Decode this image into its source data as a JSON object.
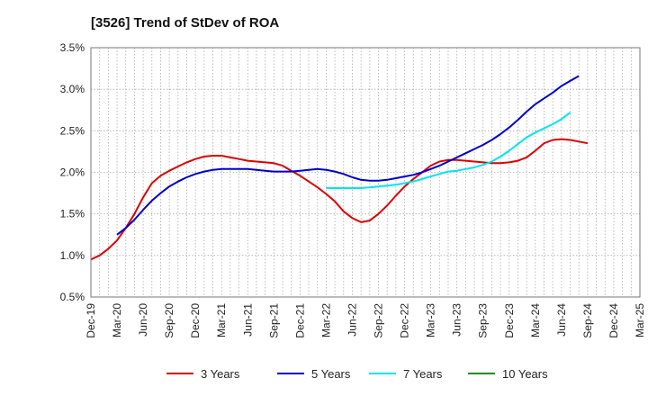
{
  "chart_data": {
    "type": "line",
    "title": "[3526]  Trend of StDev of ROA",
    "xlabel": "",
    "ylabel": "",
    "x_ticks": [
      "Dec-19",
      "Mar-20",
      "Jun-20",
      "Sep-20",
      "Dec-20",
      "Mar-21",
      "Jun-21",
      "Sep-21",
      "Dec-21",
      "Mar-22",
      "Jun-22",
      "Sep-22",
      "Dec-22",
      "Mar-23",
      "Jun-23",
      "Sep-23",
      "Dec-23",
      "Mar-24",
      "Jun-24",
      "Sep-24",
      "Dec-24",
      "Mar-25"
    ],
    "y_ticks": [
      "0.5%",
      "1.0%",
      "1.5%",
      "2.0%",
      "2.5%",
      "3.0%",
      "3.5%"
    ],
    "ylim": [
      0.5,
      3.5
    ],
    "grid": true,
    "legend_position": "bottom",
    "series": [
      {
        "name": "3 Years",
        "color": "#dd0000",
        "points": [
          [
            "Dec-19",
            0.95
          ],
          [
            "Jan-20",
            1.0
          ],
          [
            "Feb-20",
            1.08
          ],
          [
            "Mar-20",
            1.18
          ],
          [
            "Apr-20",
            1.33
          ],
          [
            "May-20",
            1.5
          ],
          [
            "Jun-20",
            1.7
          ],
          [
            "Jul-20",
            1.87
          ],
          [
            "Aug-20",
            1.96
          ],
          [
            "Sep-20",
            2.02
          ],
          [
            "Oct-20",
            2.07
          ],
          [
            "Nov-20",
            2.12
          ],
          [
            "Dec-20",
            2.16
          ],
          [
            "Jan-21",
            2.19
          ],
          [
            "Feb-21",
            2.2
          ],
          [
            "Mar-21",
            2.2
          ],
          [
            "Apr-21",
            2.18
          ],
          [
            "May-21",
            2.16
          ],
          [
            "Jun-21",
            2.14
          ],
          [
            "Jul-21",
            2.13
          ],
          [
            "Aug-21",
            2.12
          ],
          [
            "Sep-21",
            2.11
          ],
          [
            "Oct-21",
            2.08
          ],
          [
            "Nov-21",
            2.02
          ],
          [
            "Dec-21",
            1.96
          ],
          [
            "Jan-22",
            1.89
          ],
          [
            "Feb-22",
            1.82
          ],
          [
            "Mar-22",
            1.74
          ],
          [
            "Apr-22",
            1.65
          ],
          [
            "May-22",
            1.53
          ],
          [
            "Jun-22",
            1.45
          ],
          [
            "Jul-22",
            1.4
          ],
          [
            "Aug-22",
            1.42
          ],
          [
            "Sep-22",
            1.5
          ],
          [
            "Oct-22",
            1.6
          ],
          [
            "Nov-22",
            1.72
          ],
          [
            "Dec-22",
            1.83
          ],
          [
            "Jan-23",
            1.92
          ],
          [
            "Feb-23",
            2.0
          ],
          [
            "Mar-23",
            2.08
          ],
          [
            "Apr-23",
            2.13
          ],
          [
            "May-23",
            2.15
          ],
          [
            "Jun-23",
            2.15
          ],
          [
            "Jul-23",
            2.14
          ],
          [
            "Aug-23",
            2.13
          ],
          [
            "Sep-23",
            2.12
          ],
          [
            "Oct-23",
            2.11
          ],
          [
            "Nov-23",
            2.11
          ],
          [
            "Dec-23",
            2.12
          ],
          [
            "Jan-24",
            2.14
          ],
          [
            "Feb-24",
            2.18
          ],
          [
            "Mar-24",
            2.26
          ],
          [
            "Apr-24",
            2.35
          ],
          [
            "May-24",
            2.39
          ],
          [
            "Jun-24",
            2.4
          ],
          [
            "Jul-24",
            2.39
          ],
          [
            "Aug-24",
            2.37
          ],
          [
            "Sep-24",
            2.35
          ]
        ]
      },
      {
        "name": "5 Years",
        "color": "#0000cc",
        "points": [
          [
            "Mar-20",
            1.25
          ],
          [
            "Apr-20",
            1.33
          ],
          [
            "May-20",
            1.43
          ],
          [
            "Jun-20",
            1.55
          ],
          [
            "Jul-20",
            1.66
          ],
          [
            "Aug-20",
            1.75
          ],
          [
            "Sep-20",
            1.83
          ],
          [
            "Oct-20",
            1.89
          ],
          [
            "Nov-20",
            1.94
          ],
          [
            "Dec-20",
            1.98
          ],
          [
            "Jan-21",
            2.01
          ],
          [
            "Feb-21",
            2.03
          ],
          [
            "Mar-21",
            2.04
          ],
          [
            "Apr-21",
            2.04
          ],
          [
            "May-21",
            2.04
          ],
          [
            "Jun-21",
            2.04
          ],
          [
            "Jul-21",
            2.03
          ],
          [
            "Aug-21",
            2.02
          ],
          [
            "Sep-21",
            2.01
          ],
          [
            "Oct-21",
            2.01
          ],
          [
            "Nov-21",
            2.01
          ],
          [
            "Dec-21",
            2.02
          ],
          [
            "Jan-22",
            2.03
          ],
          [
            "Feb-22",
            2.04
          ],
          [
            "Mar-22",
            2.03
          ],
          [
            "Apr-22",
            2.01
          ],
          [
            "May-22",
            1.98
          ],
          [
            "Jun-22",
            1.94
          ],
          [
            "Jul-22",
            1.91
          ],
          [
            "Aug-22",
            1.9
          ],
          [
            "Sep-22",
            1.9
          ],
          [
            "Oct-22",
            1.91
          ],
          [
            "Nov-22",
            1.93
          ],
          [
            "Dec-22",
            1.95
          ],
          [
            "Jan-23",
            1.97
          ],
          [
            "Feb-23",
            2.0
          ],
          [
            "Mar-23",
            2.04
          ],
          [
            "Apr-23",
            2.08
          ],
          [
            "May-23",
            2.13
          ],
          [
            "Jun-23",
            2.18
          ],
          [
            "Jul-23",
            2.23
          ],
          [
            "Aug-23",
            2.28
          ],
          [
            "Sep-23",
            2.33
          ],
          [
            "Oct-23",
            2.39
          ],
          [
            "Nov-23",
            2.46
          ],
          [
            "Dec-23",
            2.54
          ],
          [
            "Jan-24",
            2.63
          ],
          [
            "Feb-24",
            2.73
          ],
          [
            "Mar-24",
            2.82
          ],
          [
            "Apr-24",
            2.89
          ],
          [
            "May-24",
            2.96
          ],
          [
            "Jun-24",
            3.04
          ],
          [
            "Jul-24",
            3.1
          ],
          [
            "Aug-24",
            3.16
          ]
        ]
      },
      {
        "name": "7 Years",
        "color": "#00e5ee",
        "points": [
          [
            "Mar-22",
            1.81
          ],
          [
            "Apr-22",
            1.81
          ],
          [
            "May-22",
            1.81
          ],
          [
            "Jun-22",
            1.81
          ],
          [
            "Jul-22",
            1.81
          ],
          [
            "Aug-22",
            1.82
          ],
          [
            "Sep-22",
            1.83
          ],
          [
            "Oct-22",
            1.84
          ],
          [
            "Nov-22",
            1.85
          ],
          [
            "Dec-22",
            1.87
          ],
          [
            "Jan-23",
            1.89
          ],
          [
            "Feb-23",
            1.92
          ],
          [
            "Mar-23",
            1.95
          ],
          [
            "Apr-23",
            1.98
          ],
          [
            "May-23",
            2.01
          ],
          [
            "Jun-23",
            2.02
          ],
          [
            "Jul-23",
            2.04
          ],
          [
            "Aug-23",
            2.06
          ],
          [
            "Sep-23",
            2.09
          ],
          [
            "Oct-23",
            2.13
          ],
          [
            "Nov-23",
            2.19
          ],
          [
            "Dec-23",
            2.26
          ],
          [
            "Jan-24",
            2.34
          ],
          [
            "Feb-24",
            2.42
          ],
          [
            "Mar-24",
            2.48
          ],
          [
            "Apr-24",
            2.53
          ],
          [
            "May-24",
            2.58
          ],
          [
            "Jun-24",
            2.64
          ],
          [
            "Jul-24",
            2.72
          ]
        ]
      },
      {
        "name": "10 Years",
        "color": "#228b22",
        "points": []
      }
    ]
  }
}
